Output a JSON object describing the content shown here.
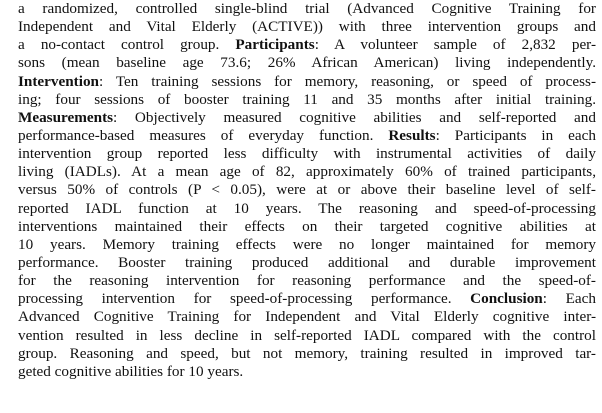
{
  "abstract": {
    "lines": [
      {
        "segments": [
          {
            "text": "a randomized, controlled single-blind trial (Advanced Cognitive Training for",
            "bold": false
          }
        ]
      },
      {
        "segments": [
          {
            "text": "Independent and Vital Elderly (ACTIVE)) with three intervention groups and",
            "bold": false
          }
        ]
      },
      {
        "segments": [
          {
            "text": "a no-contact control group. ",
            "bold": false
          },
          {
            "text": "Participants",
            "bold": true
          },
          {
            "text": ": A volunteer sample of 2,832 per-",
            "bold": false
          }
        ]
      },
      {
        "segments": [
          {
            "text": "sons (mean baseline age 73.6; 26% African American) living independently.",
            "bold": false
          }
        ]
      },
      {
        "segments": [
          {
            "text": "Intervention",
            "bold": true
          },
          {
            "text": ": Ten training sessions for memory, reasoning, or speed of process-",
            "bold": false
          }
        ]
      },
      {
        "segments": [
          {
            "text": "ing; four sessions of booster training 11 and 35 months after initial training.",
            "bold": false
          }
        ]
      },
      {
        "segments": [
          {
            "text": "Measurements",
            "bold": true
          },
          {
            "text": ": Objectively measured cognitive abilities and self-reported and",
            "bold": false
          }
        ]
      },
      {
        "segments": [
          {
            "text": "performance-based measures of everyday function. ",
            "bold": false
          },
          {
            "text": "Results",
            "bold": true
          },
          {
            "text": ": Participants in each",
            "bold": false
          }
        ]
      },
      {
        "segments": [
          {
            "text": "intervention group reported less difficulty with instrumental activities of daily",
            "bold": false
          }
        ]
      },
      {
        "segments": [
          {
            "text": "living (IADLs). At a mean age of 82, approximately 60% of trained participants,",
            "bold": false
          }
        ]
      },
      {
        "segments": [
          {
            "text": "versus 50% of controls (P < 0.05), were at or above their baseline level of self-",
            "bold": false
          }
        ]
      },
      {
        "segments": [
          {
            "text": "reported IADL function at 10 years. The reasoning and speed-of-processing",
            "bold": false
          }
        ]
      },
      {
        "segments": [
          {
            "text": "interventions maintained their effects on their targeted cognitive abilities at",
            "bold": false
          }
        ]
      },
      {
        "segments": [
          {
            "text": "10 years. Memory training effects were no longer maintained for memory",
            "bold": false
          }
        ]
      },
      {
        "segments": [
          {
            "text": "performance. Booster training produced additional and durable improvement",
            "bold": false
          }
        ]
      },
      {
        "segments": [
          {
            "text": "for the reasoning intervention for reasoning performance and the speed-of-",
            "bold": false
          }
        ]
      },
      {
        "segments": [
          {
            "text": "processing intervention for speed-of-processing performance. ",
            "bold": false
          },
          {
            "text": "Conclusion",
            "bold": true
          },
          {
            "text": ": Each",
            "bold": false
          }
        ]
      },
      {
        "segments": [
          {
            "text": "Advanced Cognitive Training for Independent and Vital Elderly cognitive inter-",
            "bold": false
          }
        ]
      },
      {
        "segments": [
          {
            "text": "vention resulted in less decline in self-reported IADL compared with the control",
            "bold": false
          }
        ]
      },
      {
        "segments": [
          {
            "text": "group. Reasoning and speed, but not memory, training resulted in improved tar-",
            "bold": false
          }
        ]
      },
      {
        "segments": [
          {
            "text": "geted cognitive abilities for 10 years.",
            "bold": false
          }
        ]
      }
    ]
  }
}
